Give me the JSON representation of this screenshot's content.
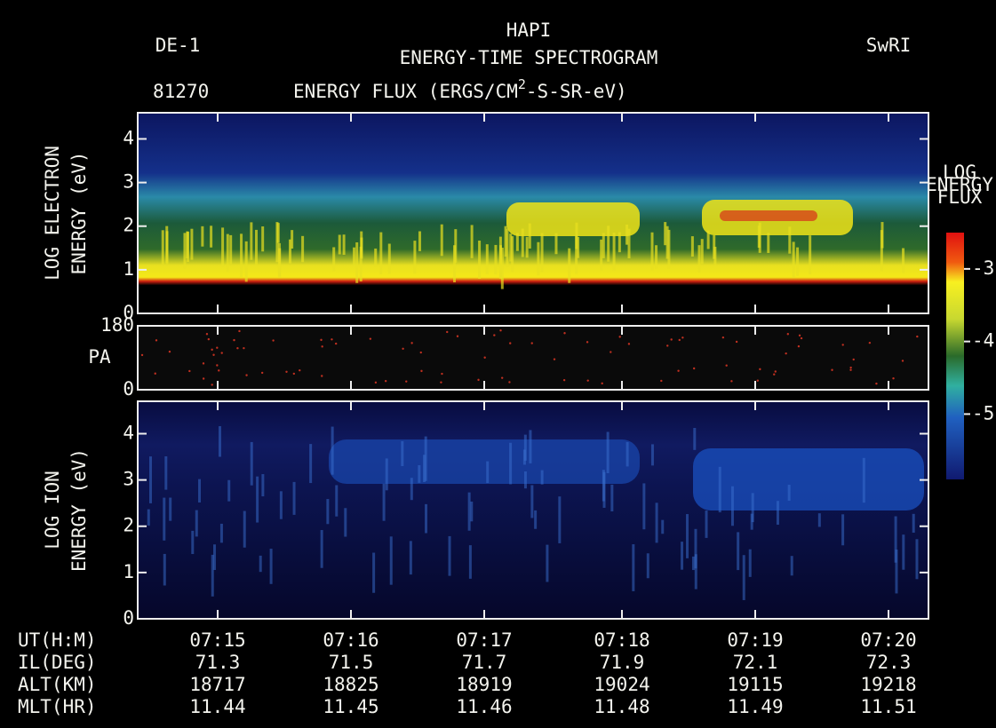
{
  "header": {
    "left": "DE-1",
    "title": "HAPI",
    "subtitle": "ENERGY-TIME SPECTROGRAM",
    "right": "SwRI",
    "id": "81270",
    "units_pre": "ENERGY FLUX  (ERGS/CM",
    "units_sup": "2",
    "units_post": "-S-SR-eV)"
  },
  "chart_data": {
    "type": "spectrogram",
    "panels": [
      {
        "ylabel": [
          "LOG ELECTRON",
          "ENERGY  (eV)"
        ],
        "ylim": [
          0,
          4.6
        ],
        "yticks": [
          0,
          1,
          2,
          3,
          4
        ]
      },
      {
        "ylabel": [
          "PA"
        ],
        "ylim": [
          0,
          180
        ],
        "yticks": [
          0,
          180
        ]
      },
      {
        "ylabel": [
          "LOG ION",
          "ENERGY  (eV)"
        ],
        "ylim": [
          0,
          4.7
        ],
        "yticks": [
          0,
          1,
          2,
          3,
          4
        ]
      }
    ],
    "colorbar": {
      "label": [
        "LOG",
        "ENERGY",
        "FLUX"
      ],
      "ylim": [
        -5.9,
        -2.5
      ],
      "yticks": [
        -3,
        -4,
        -5
      ]
    },
    "rows": [
      {
        "label": "UT(H:M)",
        "values": [
          "07:15",
          "07:16",
          "07:17",
          "07:18",
          "07:19",
          "07:20"
        ]
      },
      {
        "label": "IL(DEG)",
        "values": [
          "71.3",
          "71.5",
          "71.7",
          "71.9",
          "72.1",
          "72.3"
        ]
      },
      {
        "label": "ALT(KM)",
        "values": [
          "18717",
          "18825",
          "18919",
          "19024",
          "19115",
          "19218"
        ]
      },
      {
        "label": "MLT(HR)",
        "values": [
          "11.44",
          "11.45",
          "11.46",
          "11.48",
          "11.49",
          "11.51"
        ]
      }
    ]
  }
}
